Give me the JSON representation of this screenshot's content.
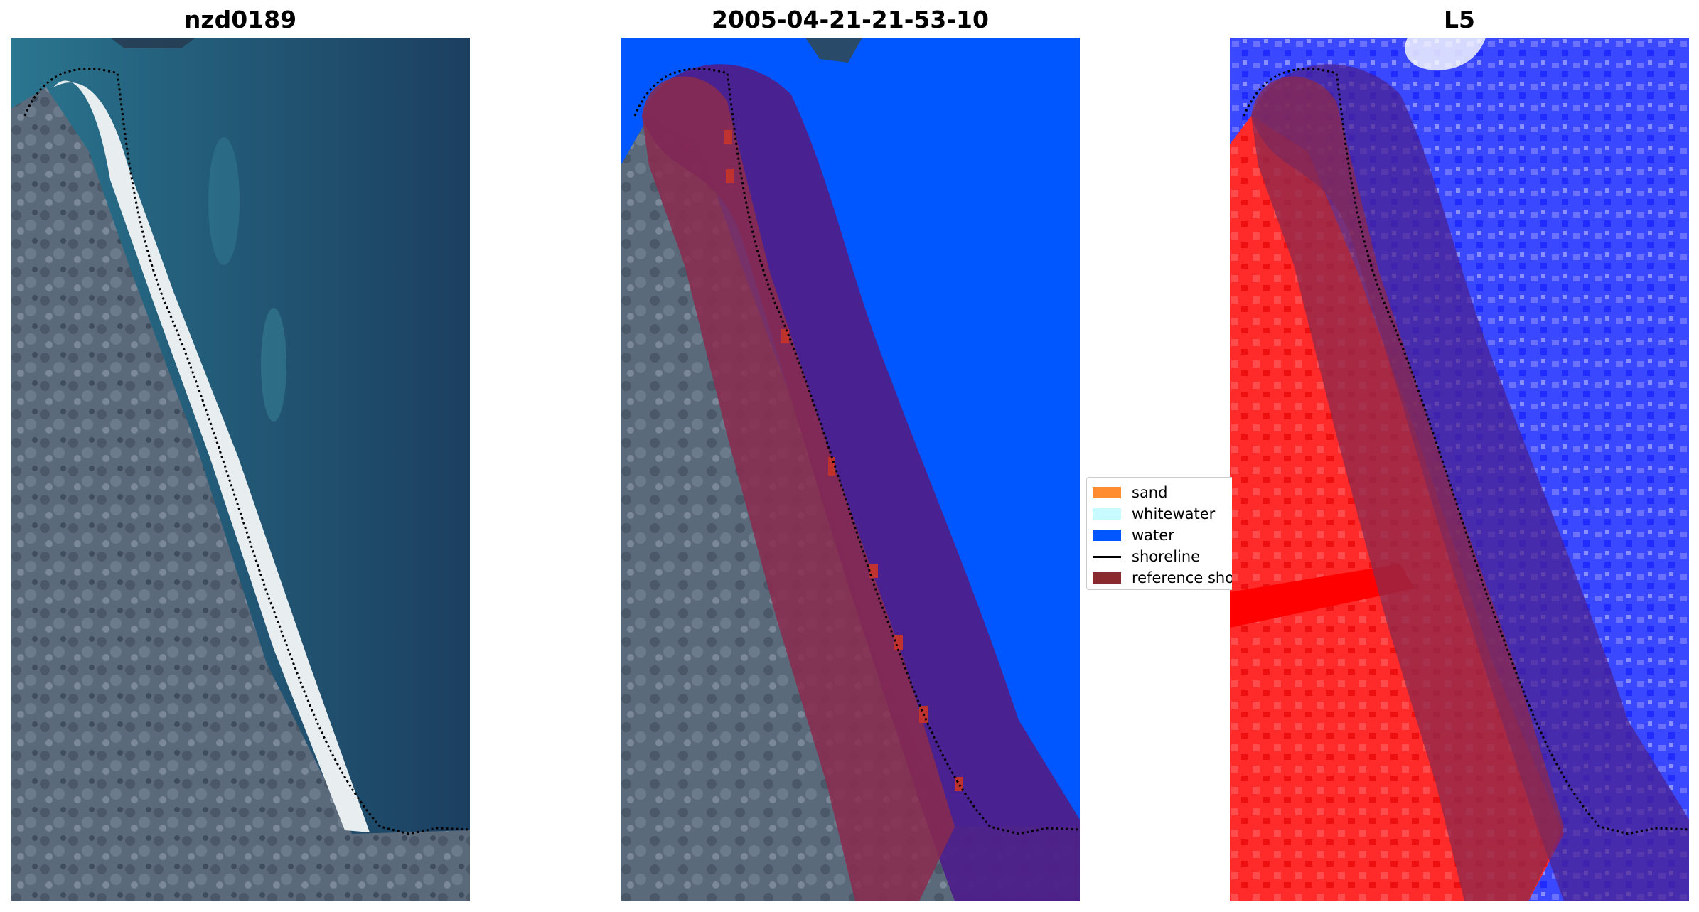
{
  "panels": {
    "left_title": "nzd0189",
    "middle_title": "2005-04-21-21-53-10",
    "right_title": "L5"
  },
  "legend": {
    "items": [
      {
        "label": "sand",
        "color": "#ff8c2e"
      },
      {
        "label": "whitewater",
        "color": "#c8fbff"
      },
      {
        "label": "water",
        "color": "#0057ff"
      },
      {
        "label": "shoreline",
        "color": "#000000",
        "kind": "line"
      },
      {
        "label": "reference shoreline",
        "color": "#8b2a2e"
      }
    ]
  },
  "colors": {
    "land": "#5a6a7c",
    "sea_dark": "#1f4a6a",
    "sea_shallow": "#2a6f88",
    "beach": "#e9eef0",
    "water_class": "#0057ff",
    "buffer_purple": "#4d1f8a",
    "reference_band": "#8b2a4e",
    "index_red": "#ff1010",
    "index_blue": "#2a36ff"
  }
}
